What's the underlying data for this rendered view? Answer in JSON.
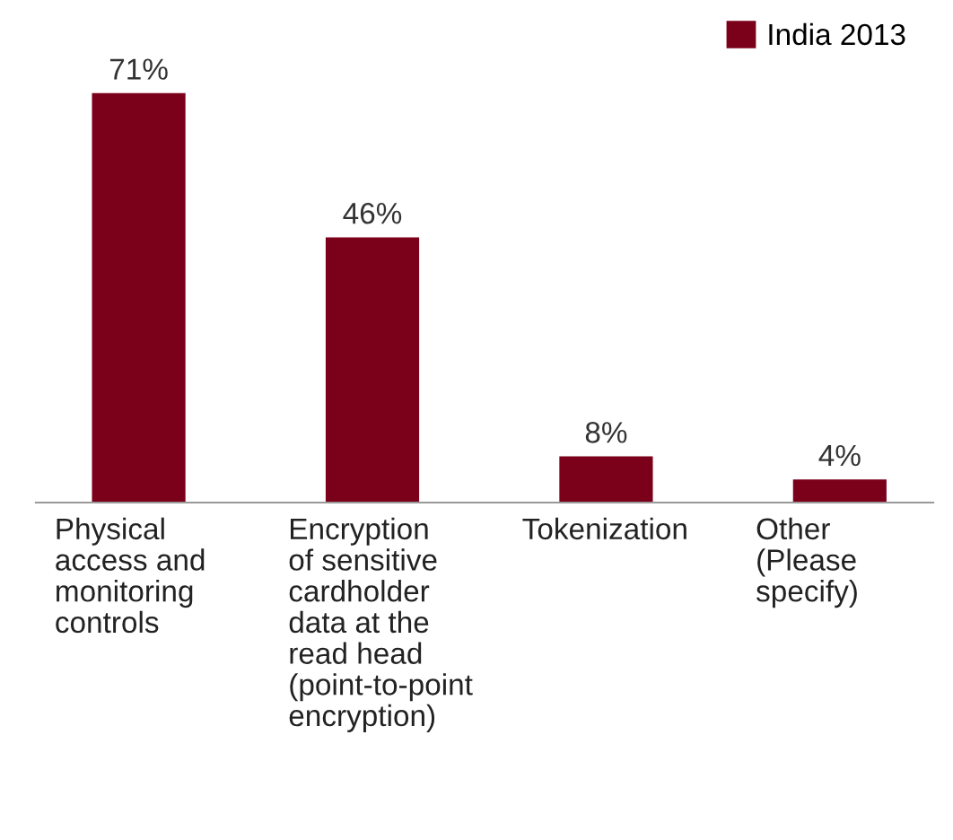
{
  "chart_data": {
    "type": "bar",
    "categories": [
      "Physical\naccess and\nmonitoring\ncontrols",
      "Encryption\nof sensitive\ncardholder\ndata at the\nread head\n(point-to-point\nencryption)",
      "Tokenization",
      "Other\n(Please\nspecify)"
    ],
    "series": [
      {
        "name": "India 2013",
        "color": "#7b0019",
        "values": [
          71,
          46,
          8,
          4
        ],
        "value_labels": [
          "71%",
          "46%",
          "8%",
          "4%"
        ]
      }
    ],
    "legend": "top right"
  }
}
